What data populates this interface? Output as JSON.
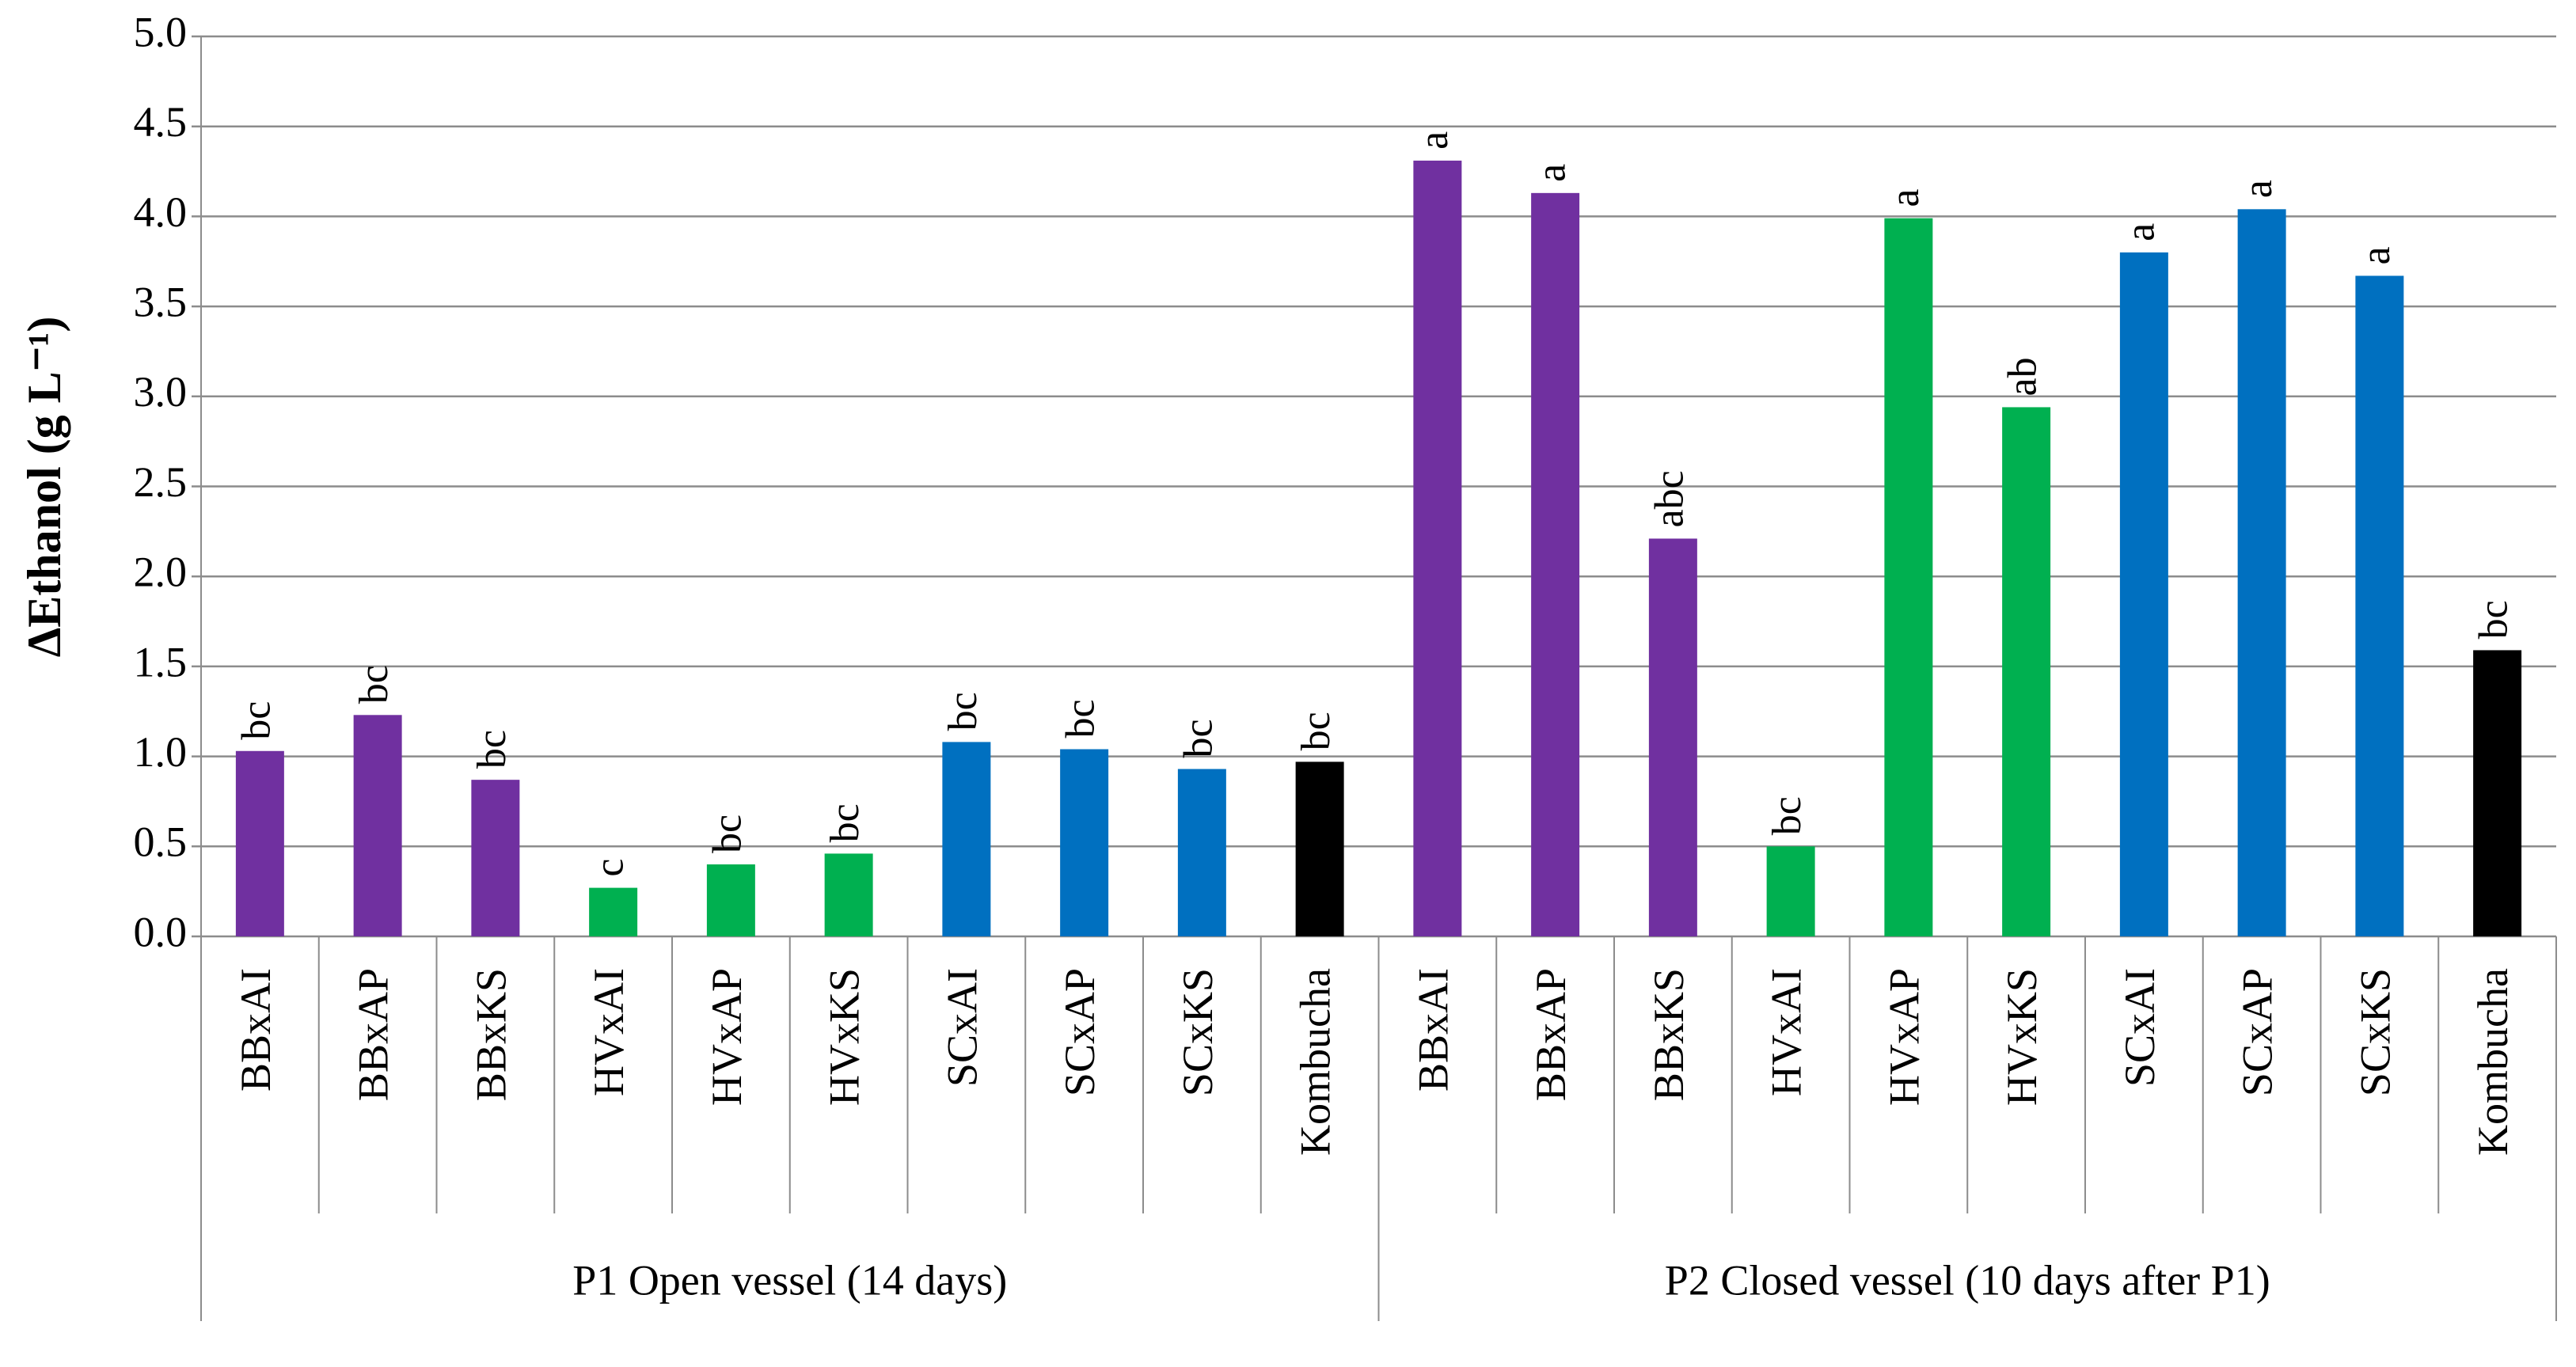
{
  "chart_data": {
    "type": "bar",
    "y_label": "ΔEthanol (g L⁻¹)",
    "ylim": [
      0,
      5
    ],
    "yticks": [
      {
        "value": 0,
        "label": "0.0"
      },
      0.5,
      {
        "value": 1,
        "label": "1.0"
      },
      1.5,
      {
        "value": 2,
        "label": "2.0"
      },
      2.5,
      {
        "value": 3,
        "label": "3.0"
      },
      3.5,
      {
        "value": 4,
        "label": "4.0"
      },
      4.5,
      {
        "value": 5,
        "label": "5.0"
      }
    ],
    "grid": true,
    "groups": [
      {
        "name": "P1 Open vessel (14 days)",
        "categories": [
          "BBxAI",
          "BBxAP",
          "BBxKS",
          "HVxAI",
          "HVxAP",
          "HVxKS",
          "SCxAI",
          "SCxAP",
          "SCxKS",
          "Kombucha"
        ],
        "values": [
          1.03,
          1.23,
          0.87,
          0.27,
          0.4,
          0.46,
          1.08,
          1.04,
          0.93,
          0.97
        ],
        "colors": [
          "#7030a0",
          "#7030a0",
          "#7030a0",
          "#00b050",
          "#00b050",
          "#00b050",
          "#0070c0",
          "#0070c0",
          "#0070c0",
          "#000000"
        ],
        "letters": [
          "bc",
          "bc",
          "bc",
          "c",
          "bc",
          "bc",
          "bc",
          "bc",
          "bc",
          "bc"
        ]
      },
      {
        "name": "P2 Closed vessel (10 days after P1)",
        "categories": [
          "BBxAI",
          "BBxAP",
          "BBxKS",
          "HVxAI",
          "HVxAP",
          "HVxKS",
          "SCxAI",
          "SCxAP",
          "SCxKS",
          "Kombucha"
        ],
        "values": [
          4.31,
          4.13,
          2.21,
          0.5,
          3.99,
          2.94,
          3.8,
          4.04,
          3.67,
          1.59
        ],
        "colors": [
          "#7030a0",
          "#7030a0",
          "#7030a0",
          "#00b050",
          "#00b050",
          "#00b050",
          "#0070c0",
          "#0070c0",
          "#0070c0",
          "#000000"
        ],
        "letters": [
          "a",
          "a",
          "abc",
          "bc",
          "a",
          "ab",
          "a",
          "a",
          "a",
          "bc"
        ]
      }
    ]
  }
}
